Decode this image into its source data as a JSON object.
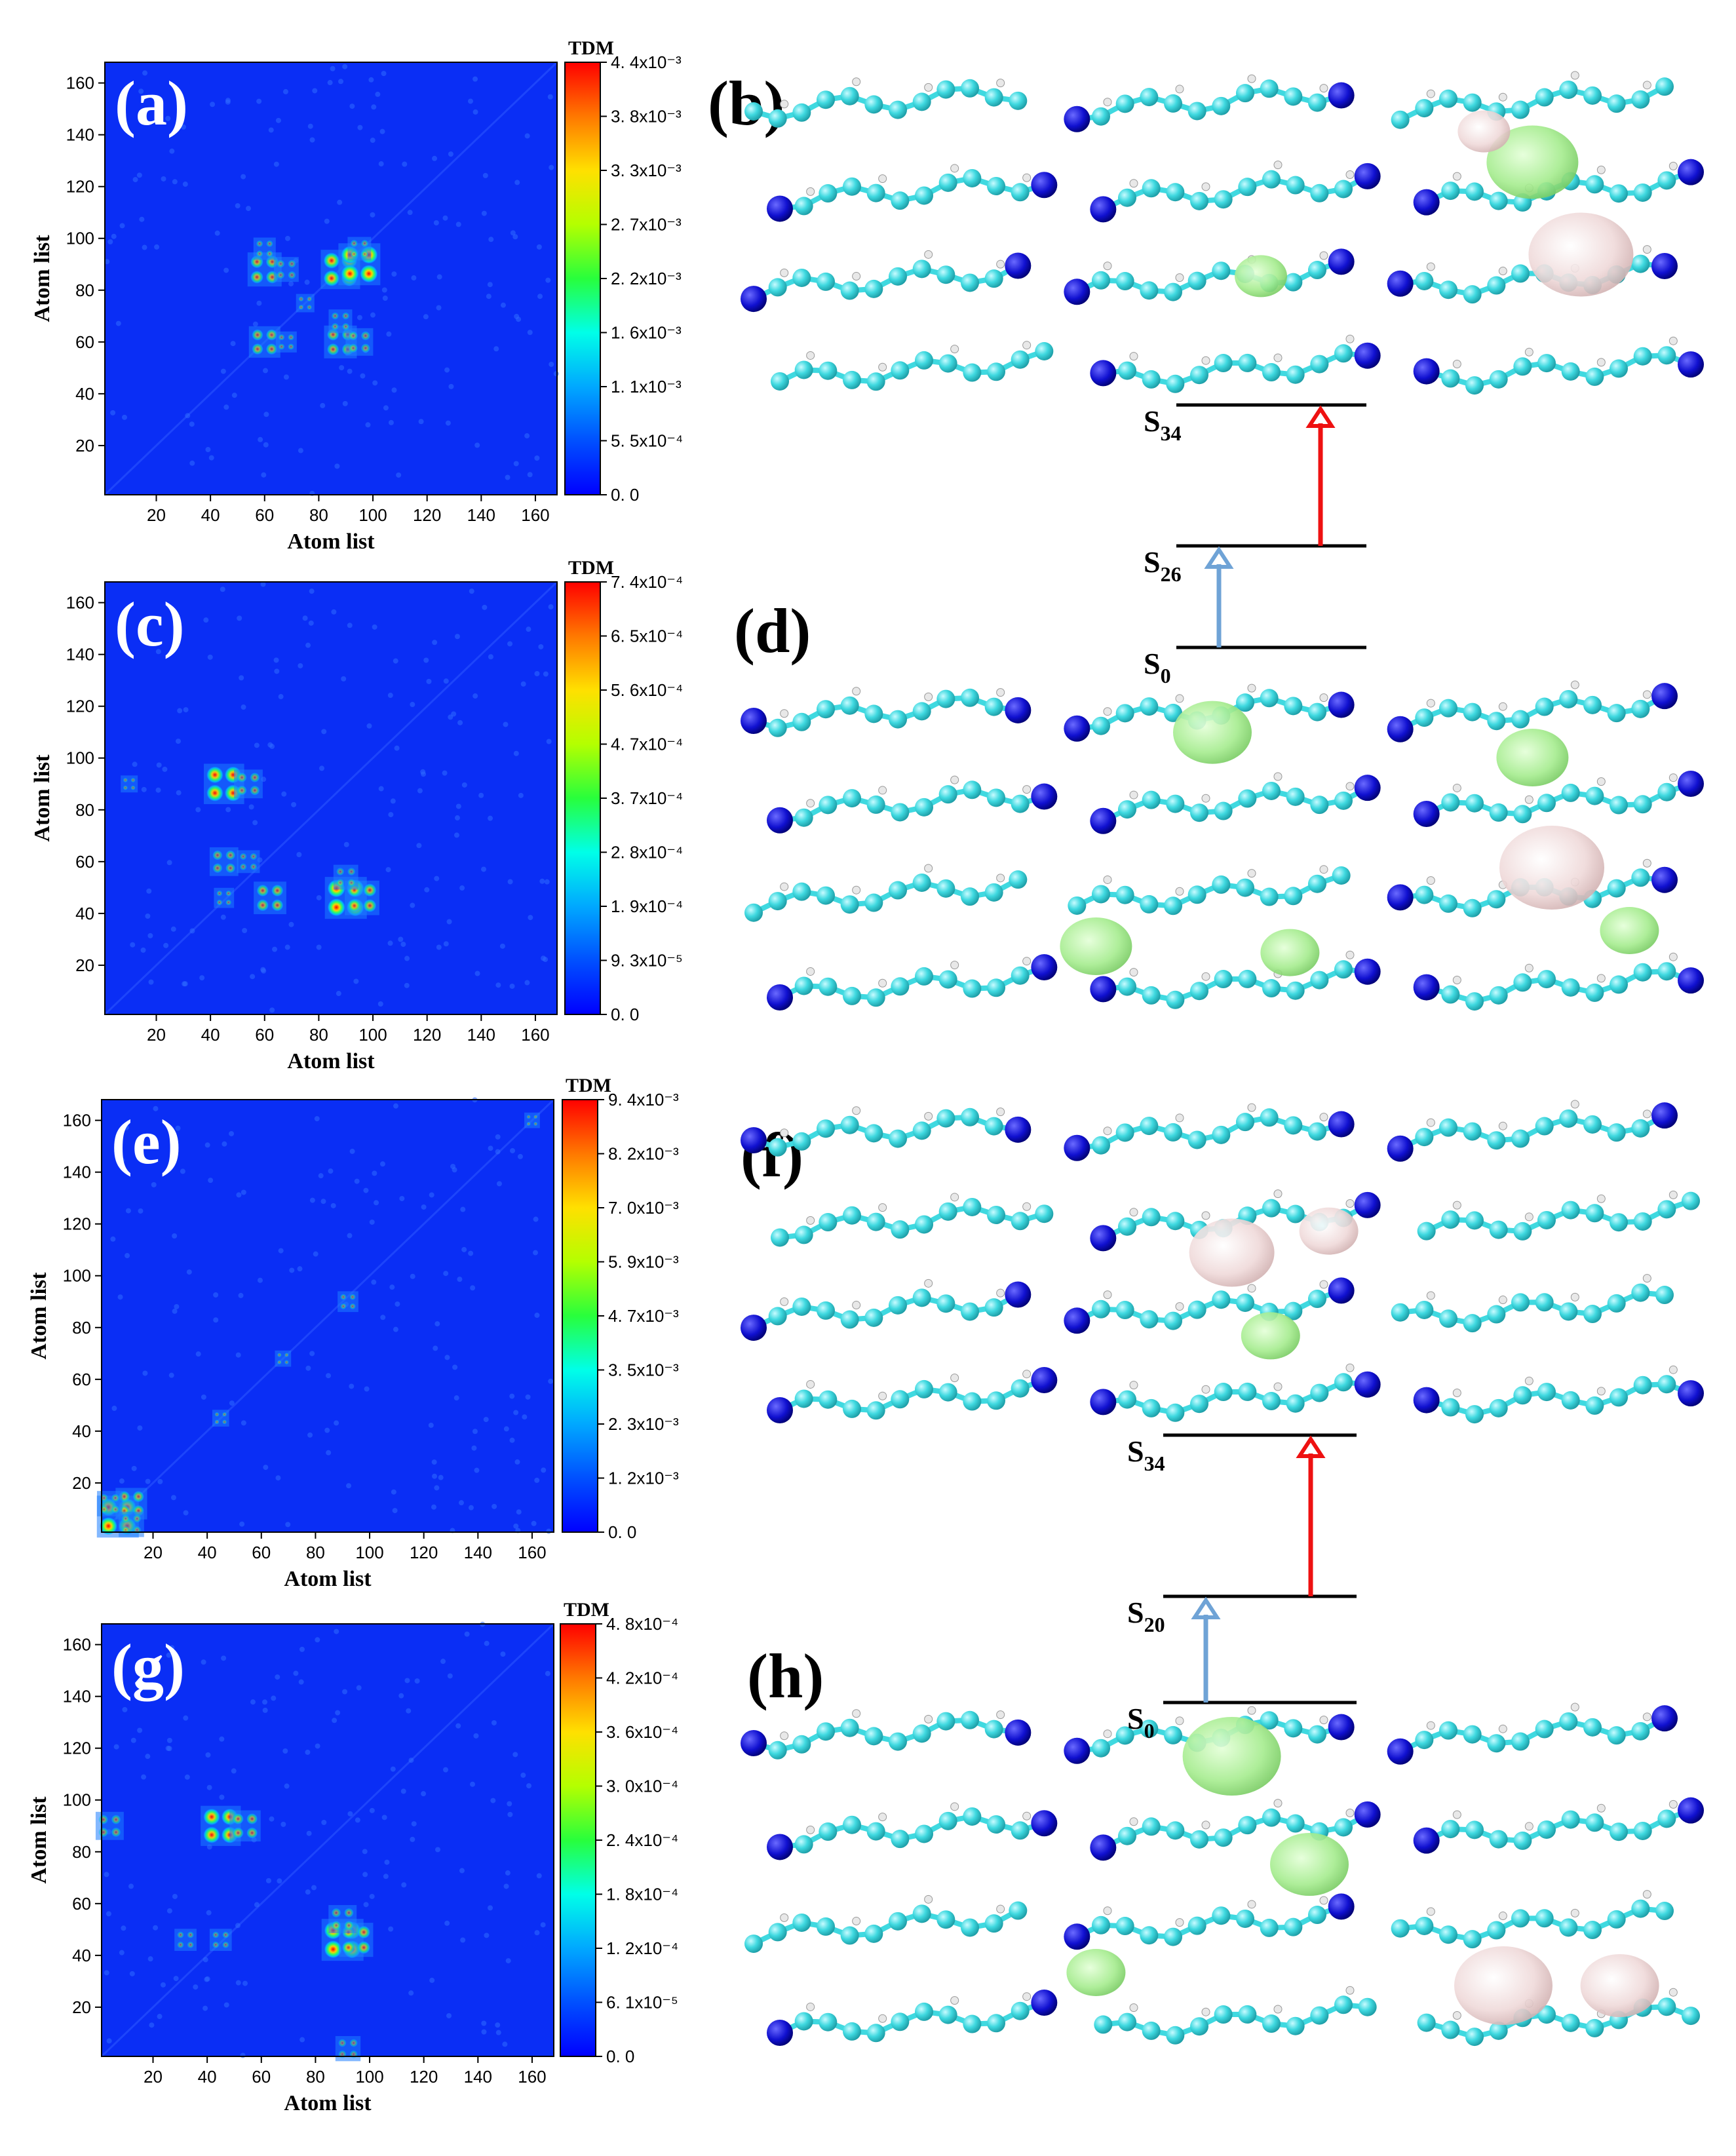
{
  "figure": {
    "caption_labels": [
      "(a)",
      "(b)",
      "(c)",
      "(d)",
      "(e)",
      "(f)",
      "(g)",
      "(h)"
    ]
  },
  "chart_data": [
    {
      "type": "heatmap",
      "label": "(a)",
      "xlabel": "Atom list",
      "ylabel": "Atom list",
      "xlim": [
        1,
        168
      ],
      "ylim": [
        1,
        168
      ],
      "xticks": [
        "20",
        "40",
        "60",
        "80",
        "100",
        "120",
        "140",
        "160"
      ],
      "yticks": [
        "20",
        "40",
        "60",
        "80",
        "100",
        "120",
        "140",
        "160"
      ],
      "colorbar": {
        "title": "TDM",
        "tick_labels": [
          "0. 0",
          "5. 5x10⁻⁴",
          "1. 1x10⁻³",
          "1. 6x10⁻³",
          "2. 2x10⁻³",
          "2. 7x10⁻³",
          "3. 3x10⁻³",
          "3. 8x10⁻³",
          "4. 4x10⁻³"
        ],
        "min": 0,
        "max": 0.0044
      },
      "hotspots": [
        {
          "x": 60,
          "y": 88,
          "value": 0.0032
        },
        {
          "x": 68,
          "y": 88,
          "value": 0.0018
        },
        {
          "x": 60,
          "y": 60,
          "value": 0.0028
        },
        {
          "x": 68,
          "y": 60,
          "value": 0.0012
        },
        {
          "x": 88,
          "y": 88,
          "value": 0.004
        },
        {
          "x": 95,
          "y": 90,
          "value": 0.0044
        },
        {
          "x": 88,
          "y": 60,
          "value": 0.003
        },
        {
          "x": 95,
          "y": 60,
          "value": 0.0022
        },
        {
          "x": 88,
          "y": 68,
          "value": 0.0016
        },
        {
          "x": 60,
          "y": 96,
          "value": 0.0014
        },
        {
          "x": 95,
          "y": 96,
          "value": 0.0016
        },
        {
          "x": 75,
          "y": 75,
          "value": 0.0008
        }
      ]
    },
    {
      "type": "heatmap",
      "label": "(c)",
      "xlabel": "Atom list",
      "ylabel": "Atom list",
      "xlim": [
        1,
        168
      ],
      "ylim": [
        1,
        168
      ],
      "xticks": [
        "20",
        "40",
        "60",
        "80",
        "100",
        "120",
        "140",
        "160"
      ],
      "yticks": [
        "20",
        "40",
        "60",
        "80",
        "100",
        "120",
        "140",
        "160"
      ],
      "colorbar": {
        "title": "TDM",
        "tick_labels": [
          "0. 0",
          "9. 3x10⁻⁵",
          "1. 9x10⁻⁴",
          "2. 8x10⁻⁴",
          "3. 7x10⁻⁴",
          "4. 7x10⁻⁴",
          "5. 6x10⁻⁴",
          "6. 5x10⁻⁴",
          "7. 4x10⁻⁴"
        ],
        "min": 0,
        "max": 0.00074
      },
      "hotspots": [
        {
          "x": 45,
          "y": 90,
          "value": 0.0007
        },
        {
          "x": 54,
          "y": 90,
          "value": 0.0004
        },
        {
          "x": 45,
          "y": 60,
          "value": 0.0004
        },
        {
          "x": 54,
          "y": 60,
          "value": 0.00025
        },
        {
          "x": 62,
          "y": 46,
          "value": 0.0005
        },
        {
          "x": 90,
          "y": 46,
          "value": 0.00074
        },
        {
          "x": 96,
          "y": 46,
          "value": 0.00055
        },
        {
          "x": 90,
          "y": 54,
          "value": 0.0003
        },
        {
          "x": 45,
          "y": 46,
          "value": 0.00018
        },
        {
          "x": 10,
          "y": 90,
          "value": 0.0001
        }
      ]
    },
    {
      "type": "heatmap",
      "label": "(e)",
      "xlabel": "Atom list",
      "ylabel": "Atom list",
      "xlim": [
        1,
        168
      ],
      "ylim": [
        1,
        168
      ],
      "xticks": [
        "20",
        "40",
        "60",
        "80",
        "100",
        "120",
        "140",
        "160"
      ],
      "yticks": [
        "20",
        "40",
        "60",
        "80",
        "100",
        "120",
        "140",
        "160"
      ],
      "colorbar": {
        "title": "TDM",
        "tick_labels": [
          "0. 0",
          "1. 2x10⁻³",
          "2. 3x10⁻³",
          "3. 5x10⁻³",
          "4. 7x10⁻³",
          "5. 9x10⁻³",
          "7. 0x10⁻³",
          "8. 2x10⁻³",
          "9. 4x10⁻³"
        ],
        "min": 0,
        "max": 0.0094
      },
      "hotspots": [
        {
          "x": 7,
          "y": 7,
          "value": 0.0094
        },
        {
          "x": 12,
          "y": 12,
          "value": 0.006
        },
        {
          "x": 4,
          "y": 12,
          "value": 0.004
        },
        {
          "x": 12,
          "y": 4,
          "value": 0.004
        },
        {
          "x": 92,
          "y": 90,
          "value": 0.0025
        },
        {
          "x": 45,
          "y": 45,
          "value": 0.0012
        },
        {
          "x": 68,
          "y": 68,
          "value": 0.001
        },
        {
          "x": 160,
          "y": 160,
          "value": 0.0008
        }
      ]
    },
    {
      "type": "heatmap",
      "label": "(g)",
      "xlabel": "Atom list",
      "ylabel": "Atom list",
      "xlim": [
        1,
        168
      ],
      "ylim": [
        1,
        168
      ],
      "xticks": [
        "20",
        "40",
        "60",
        "80",
        "100",
        "120",
        "140",
        "160"
      ],
      "yticks": [
        "20",
        "40",
        "60",
        "80",
        "100",
        "120",
        "140",
        "160"
      ],
      "colorbar": {
        "title": "TDM",
        "tick_labels": [
          "0. 0",
          "6. 1x10⁻⁵",
          "1. 2x10⁻⁴",
          "1. 8x10⁻⁴",
          "2. 4x10⁻⁴",
          "3. 0x10⁻⁴",
          "3. 6x10⁻⁴",
          "4. 2x10⁻⁴",
          "4. 8x10⁻⁴"
        ],
        "min": 0,
        "max": 0.00048
      },
      "hotspots": [
        {
          "x": 45,
          "y": 90,
          "value": 0.00045
        },
        {
          "x": 54,
          "y": 90,
          "value": 0.0003
        },
        {
          "x": 4,
          "y": 90,
          "value": 0.00025
        },
        {
          "x": 90,
          "y": 46,
          "value": 0.00048
        },
        {
          "x": 95,
          "y": 46,
          "value": 0.00035
        },
        {
          "x": 90,
          "y": 54,
          "value": 0.00025
        },
        {
          "x": 32,
          "y": 46,
          "value": 0.00015
        },
        {
          "x": 45,
          "y": 46,
          "value": 0.00015
        },
        {
          "x": 92,
          "y": 4,
          "value": 0.0002
        }
      ]
    }
  ],
  "energy_diagrams": [
    {
      "levels": [
        {
          "base": "S",
          "sub": "34"
        },
        {
          "base": "S",
          "sub": "26"
        },
        {
          "base": "S",
          "sub": "0"
        }
      ],
      "arrows": [
        {
          "from": "S0",
          "to": "S26",
          "color": "#6fa3d6"
        },
        {
          "from": "S26",
          "to": "S34",
          "color": "#ee1111"
        }
      ]
    },
    {
      "levels": [
        {
          "base": "S",
          "sub": "34"
        },
        {
          "base": "S",
          "sub": "20"
        },
        {
          "base": "S",
          "sub": "0"
        }
      ],
      "arrows": [
        {
          "from": "S0",
          "to": "S20",
          "color": "#6fa3d6"
        },
        {
          "from": "S20",
          "to": "S34",
          "color": "#ee1111"
        }
      ]
    }
  ],
  "molecule_panels": [
    "(b)",
    "(d)",
    "(f)",
    "(h)"
  ],
  "colors": {
    "heat_background": "#0a2ef5",
    "atom_carbon": "#3fd9e0",
    "atom_nitrogen": "#1010d0",
    "isosurface_green": "#a5ec8e",
    "isosurface_pink": "#efd9d9",
    "arrow_red": "#ee1111",
    "arrow_blue": "#6fa3d6"
  }
}
